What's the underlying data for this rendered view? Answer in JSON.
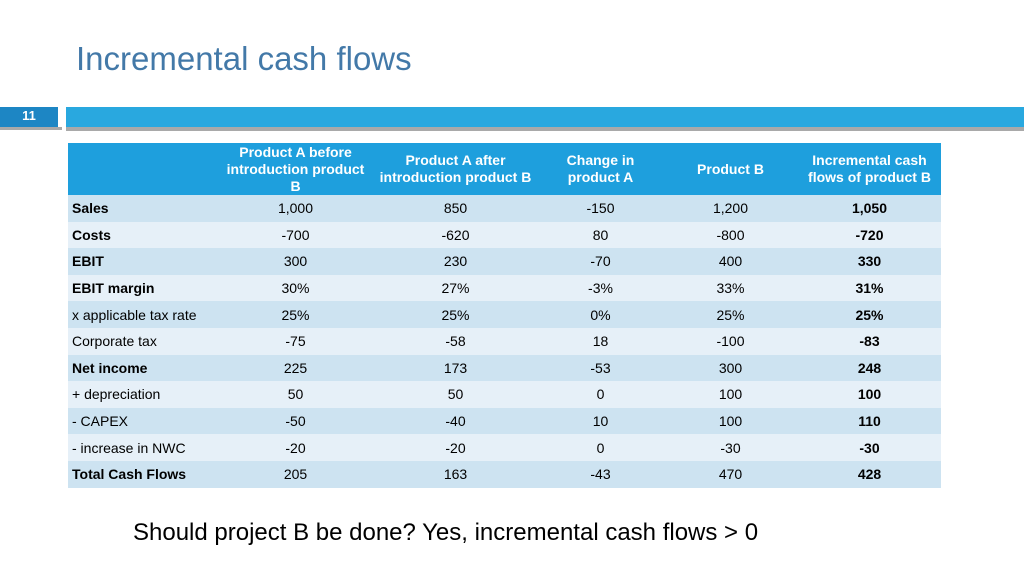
{
  "title": "Incremental cash flows",
  "slide_number": "11",
  "colors": {
    "title": "#4379a8",
    "header_bg": "#1e9fdd",
    "row_odd": "#cde3f1",
    "row_even": "#e6f0f8",
    "bar": "#29a8df",
    "slide_number_bg": "#1d86c4"
  },
  "table": {
    "headers": [
      "",
      "Product A before introduction product B",
      "Product A after introduction product B",
      "Change in product A",
      "Product B",
      "Incremental cash flows of product B"
    ],
    "rows": [
      {
        "label": "Sales",
        "bold": true,
        "values": [
          "1,000",
          "850",
          "-150",
          "1,200",
          "1,050"
        ]
      },
      {
        "label": "Costs",
        "bold": true,
        "values": [
          "-700",
          "-620",
          "80",
          "-800",
          "-720"
        ]
      },
      {
        "label": "EBIT",
        "bold": true,
        "values": [
          "300",
          "230",
          "-70",
          "400",
          "330"
        ]
      },
      {
        "label": "EBIT margin",
        "bold": true,
        "values": [
          "30%",
          "27%",
          "-3%",
          "33%",
          "31%"
        ]
      },
      {
        "label": "x applicable tax rate",
        "bold": false,
        "values": [
          "25%",
          "25%",
          "0%",
          "25%",
          "25%"
        ]
      },
      {
        "label": "Corporate tax",
        "bold": false,
        "values": [
          "-75",
          "-58",
          "18",
          "-100",
          "-83"
        ]
      },
      {
        "label": "Net income",
        "bold": true,
        "values": [
          "225",
          "173",
          "-53",
          "300",
          "248"
        ]
      },
      {
        "label": "+ depreciation",
        "bold": false,
        "values": [
          "50",
          "50",
          "0",
          "100",
          "100"
        ]
      },
      {
        "label": "- CAPEX",
        "bold": false,
        "values": [
          "-50",
          "-40",
          "10",
          "100",
          "110"
        ]
      },
      {
        "label": "- increase in NWC",
        "bold": false,
        "values": [
          "-20",
          "-20",
          "0",
          "-30",
          "-30"
        ]
      },
      {
        "label": "Total Cash Flows",
        "bold": true,
        "values": [
          "205",
          "163",
          "-43",
          "470",
          "428"
        ]
      }
    ]
  },
  "footer_question": "Should project B be done?  Yes, incremental cash flows > 0"
}
